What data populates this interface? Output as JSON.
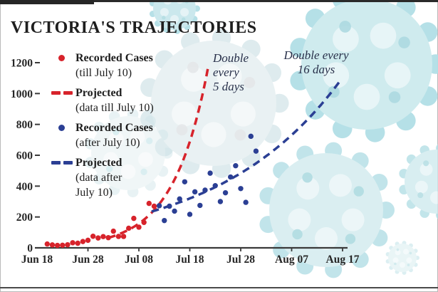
{
  "title": "VICTORIA'S TRAJECTORIES",
  "background": {
    "illustration": "coronavirus-particles",
    "tint": "#cfe9ee"
  },
  "colors": {
    "recorded_early": "#d7232b",
    "recorded_late": "#2b3f94",
    "axis": "#3a3a3a",
    "text": "#1d1d1d"
  },
  "legend": {
    "items": [
      {
        "type": "dot",
        "color": "#d7232b",
        "label": "Recorded Cases",
        "sublabel": "(till July 10)"
      },
      {
        "type": "dash",
        "color": "#d7232b",
        "label": "Projected",
        "sublabel": "(data till July 10)"
      },
      {
        "type": "dot",
        "color": "#2b3f94",
        "label": "Recorded Cases",
        "sublabel": "(after July 10)"
      },
      {
        "type": "dash",
        "color": "#2b3f94",
        "label": "Projected",
        "sublabel": "(data after\nJuly 10)"
      }
    ]
  },
  "chart_data": {
    "type": "scatter",
    "title": "VICTORIA'S TRAJECTORIES",
    "xlabel": "",
    "ylabel": "",
    "ylim": [
      0,
      1200
    ],
    "grid": false,
    "y_axis": {
      "ticks": [
        0,
        200,
        400,
        600,
        800,
        1000,
        1200
      ]
    },
    "x_axis": {
      "ticks": [
        {
          "label": "Jun 18",
          "day": 0
        },
        {
          "label": "Jun 28",
          "day": 10
        },
        {
          "label": "Jul 08",
          "day": 20
        },
        {
          "label": "Jul 18",
          "day": 30
        },
        {
          "label": "Jul 28",
          "day": 40
        },
        {
          "label": "Aug 07",
          "day": 50
        },
        {
          "label": "Aug 17",
          "day": 60
        }
      ]
    },
    "annotations": [
      {
        "text": "Double\nevery\n5 days",
        "series": "projected-till-july-10"
      },
      {
        "text": "Double every\n16 days",
        "series": "projected-after-july-10"
      }
    ],
    "series": [
      {
        "name": "Recorded Cases (till July 10)",
        "kind": "dots",
        "color": "#d7232b",
        "points": [
          {
            "date": "Jun 20",
            "day": 2,
            "value": 25
          },
          {
            "date": "Jun 21",
            "day": 3,
            "value": 19
          },
          {
            "date": "Jun 22",
            "day": 4,
            "value": 16
          },
          {
            "date": "Jun 23",
            "day": 5,
            "value": 17
          },
          {
            "date": "Jun 24",
            "day": 6,
            "value": 20
          },
          {
            "date": "Jun 25",
            "day": 7,
            "value": 33
          },
          {
            "date": "Jun 26",
            "day": 8,
            "value": 30
          },
          {
            "date": "Jun 27",
            "day": 9,
            "value": 41
          },
          {
            "date": "Jun 28",
            "day": 10,
            "value": 49
          },
          {
            "date": "Jun 29",
            "day": 11,
            "value": 75
          },
          {
            "date": "Jun 30",
            "day": 12,
            "value": 64
          },
          {
            "date": "Jul 01",
            "day": 13,
            "value": 73
          },
          {
            "date": "Jul 02",
            "day": 14,
            "value": 66
          },
          {
            "date": "Jul 03",
            "day": 15,
            "value": 108
          },
          {
            "date": "Jul 04",
            "day": 16,
            "value": 74
          },
          {
            "date": "Jul 05",
            "day": 17,
            "value": 74
          },
          {
            "date": "Jul 06",
            "day": 18,
            "value": 127
          },
          {
            "date": "Jul 07",
            "day": 19,
            "value": 191
          },
          {
            "date": "Jul 08",
            "day": 20,
            "value": 134
          },
          {
            "date": "Jul 09",
            "day": 21,
            "value": 165
          },
          {
            "date": "Jul 10",
            "day": 22,
            "value": 288
          },
          {
            "date": "Jul 11",
            "day": 23,
            "value": 270
          }
        ]
      },
      {
        "name": "Projected (data till July 10)",
        "kind": "dashed-curve",
        "color": "#d7232b",
        "doubling_label": "Double every 5 days",
        "model": {
          "start_day": 14,
          "start_value": 65,
          "doubling_days": 4.7,
          "end_value": 1200
        }
      },
      {
        "name": "Recorded Cases (after July 10)",
        "kind": "dots",
        "color": "#2b3f94",
        "points": [
          {
            "date": "Jul 12",
            "day": 24,
            "value": 273
          },
          {
            "date": "Jul 13",
            "day": 25,
            "value": 177
          },
          {
            "date": "Jul 14",
            "day": 26,
            "value": 270
          },
          {
            "date": "Jul 15",
            "day": 27,
            "value": 238
          },
          {
            "date": "Jul 16",
            "day": 28,
            "value": 317
          },
          {
            "date": "Jul 17",
            "day": 29,
            "value": 428
          },
          {
            "date": "Jul 18",
            "day": 30,
            "value": 217
          },
          {
            "date": "Jul 19",
            "day": 31,
            "value": 363
          },
          {
            "date": "Jul 20",
            "day": 32,
            "value": 275
          },
          {
            "date": "Jul 21",
            "day": 33,
            "value": 374
          },
          {
            "date": "Jul 22",
            "day": 34,
            "value": 484
          },
          {
            "date": "Jul 23",
            "day": 35,
            "value": 403
          },
          {
            "date": "Jul 24",
            "day": 36,
            "value": 300
          },
          {
            "date": "Jul 25",
            "day": 37,
            "value": 357
          },
          {
            "date": "Jul 26",
            "day": 38,
            "value": 459
          },
          {
            "date": "Jul 27",
            "day": 39,
            "value": 532
          },
          {
            "date": "Jul 28",
            "day": 40,
            "value": 384
          },
          {
            "date": "Jul 29",
            "day": 41,
            "value": 295
          },
          {
            "date": "Jul 30",
            "day": 42,
            "value": 723
          },
          {
            "date": "Jul 31",
            "day": 43,
            "value": 627
          }
        ]
      },
      {
        "name": "Projected (data after July 10)",
        "kind": "dashed-curve",
        "color": "#2b3f94",
        "doubling_label": "Double every 16 days",
        "model": {
          "start_day": 22.5,
          "start_value": 235,
          "doubling_days": 16.8,
          "end_day": 60
        }
      }
    ]
  }
}
